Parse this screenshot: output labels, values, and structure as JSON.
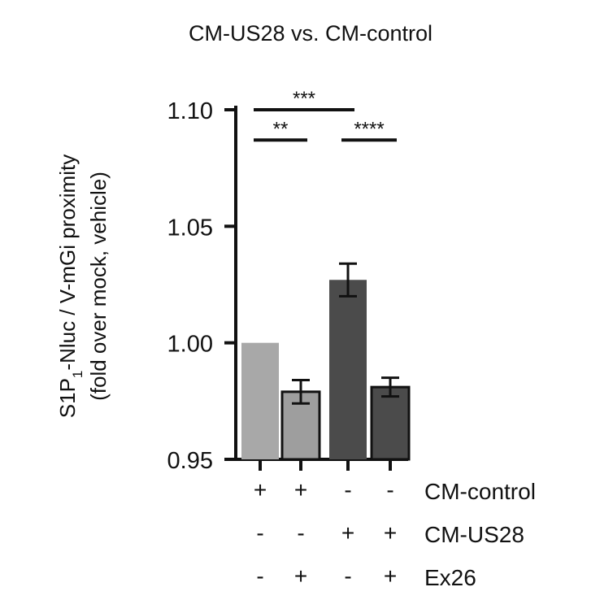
{
  "chart_data": {
    "type": "bar",
    "title": "CM-US28 vs. CM-control",
    "ylabel_lines": [
      "S1P",
      "1",
      "-Nluc / V-mGi proximity",
      "(fold over mock, vehicle)"
    ],
    "ylim": [
      0.95,
      1.1
    ],
    "yticks": [
      "0.95",
      "1.00",
      "1.05",
      "1.10"
    ],
    "legend": "none",
    "grid": false,
    "bars": [
      {
        "value": 1.0,
        "error": 0.0,
        "color": "#a8a8a8",
        "outline": false
      },
      {
        "value": 0.979,
        "error": 0.005,
        "color": "#9e9e9e",
        "outline": true
      },
      {
        "value": 1.027,
        "error": 0.007,
        "color": "#4b4b4b",
        "outline": false
      },
      {
        "value": 0.981,
        "error": 0.004,
        "color": "#4b4b4b",
        "outline": true
      }
    ],
    "significance": [
      {
        "from": 0,
        "to": 2,
        "label": "***",
        "level": 1.1
      },
      {
        "from": 0,
        "to": 1,
        "label": "**",
        "level": 1.087
      },
      {
        "from": 2,
        "to": 3,
        "label": "****",
        "level": 1.087
      }
    ],
    "conditions": [
      {
        "label": "CM-control",
        "signs": [
          "+",
          "+",
          "-",
          "-"
        ]
      },
      {
        "label": "CM-US28",
        "signs": [
          "-",
          "-",
          "+",
          "+"
        ]
      },
      {
        "label": "Ex26",
        "signs": [
          "-",
          "+",
          "-",
          "+"
        ]
      }
    ]
  }
}
